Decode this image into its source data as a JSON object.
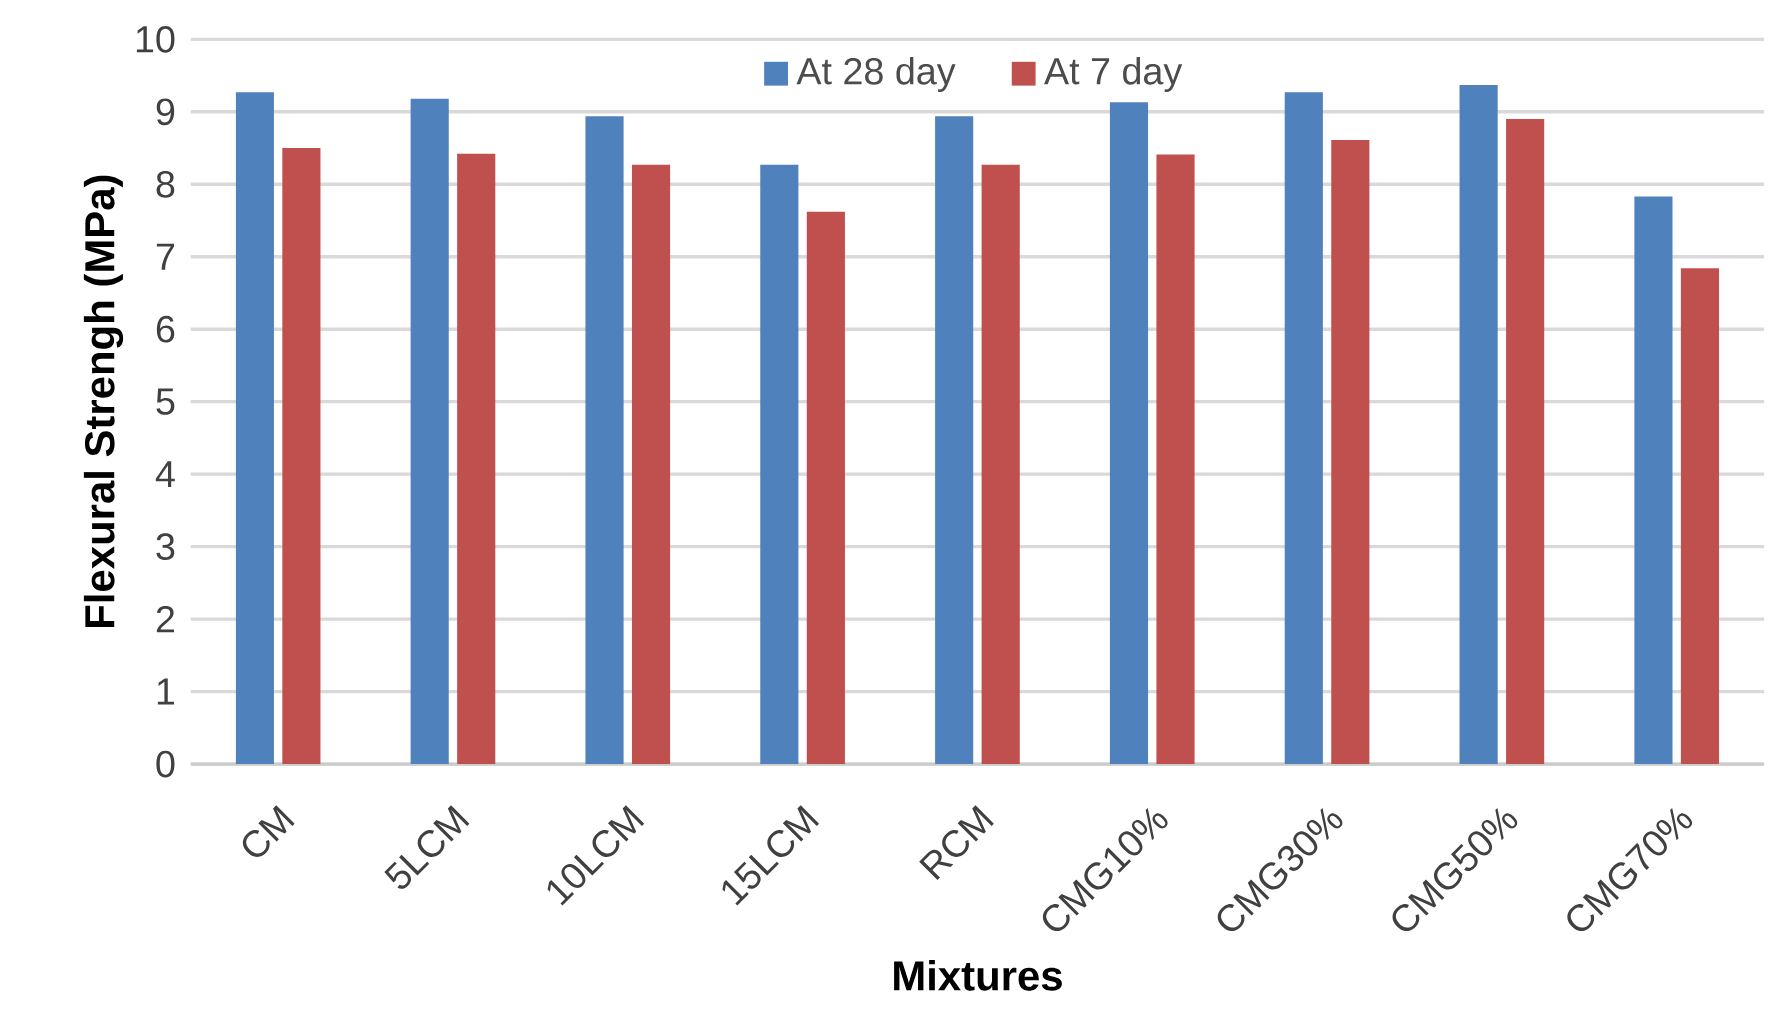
{
  "chart_data": {
    "type": "bar",
    "xlabel": "Mixtures",
    "ylabel": "Flexural Strengh (MPa)",
    "categories": [
      "CM",
      "5LCM",
      "10LCM",
      "15LCM",
      "RCM",
      "CMG10%",
      "CMG30%",
      "CMG50%",
      "CMG70%"
    ],
    "series": [
      {
        "name": "At 28 day",
        "color": "#4f81bd",
        "values": [
          9.27,
          9.18,
          8.94,
          8.27,
          8.94,
          9.13,
          9.27,
          9.37,
          7.83
        ]
      },
      {
        "name": "At 7 day",
        "color": "#c0504d",
        "values": [
          8.5,
          8.42,
          8.27,
          7.62,
          8.27,
          8.41,
          8.61,
          8.9,
          6.84
        ]
      }
    ],
    "ylim": [
      0,
      10
    ],
    "yticks": [
      0,
      1,
      2,
      3,
      4,
      5,
      6,
      7,
      8,
      9,
      10
    ],
    "grid": "y",
    "legend": "top"
  }
}
